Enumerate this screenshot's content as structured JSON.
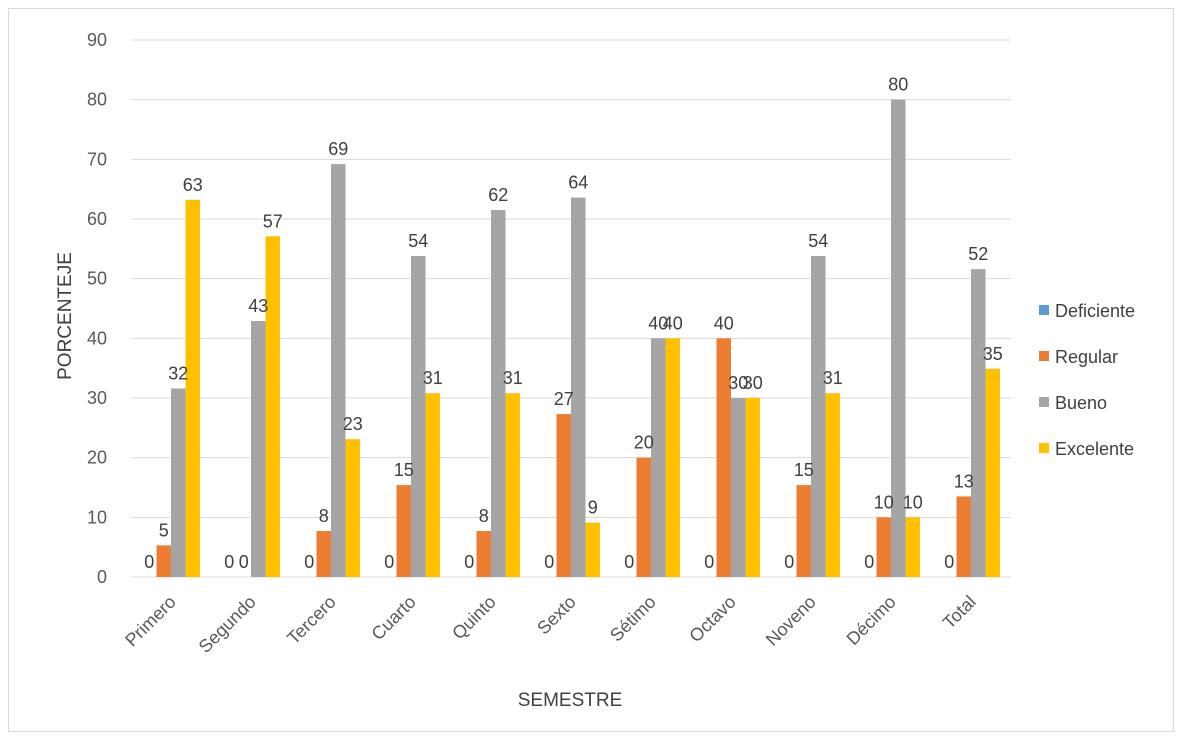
{
  "chart_data": {
    "type": "bar",
    "title": "",
    "xlabel": "SEMESTRE",
    "ylabel": "PORCENTEJE",
    "ylim": [
      0,
      90
    ],
    "yticks": [
      0,
      10,
      20,
      30,
      40,
      50,
      60,
      70,
      80,
      90
    ],
    "grid": true,
    "legend_position": "right",
    "categories": [
      "Primero",
      "Segundo",
      "Tercero",
      "Cuarto",
      "Quinto",
      "Sexto",
      "Sétimo",
      "Octavo",
      "Noveno",
      "Décimo",
      "Total"
    ],
    "series": [
      {
        "name": "Deficiente",
        "color": "#5b9bd5",
        "values": [
          0,
          0,
          0,
          0,
          0,
          0,
          0,
          0,
          0,
          0,
          0
        ],
        "labels": [
          "0",
          "0",
          "0",
          "0",
          "0",
          "0",
          "0",
          "0",
          "0",
          "0",
          "0"
        ]
      },
      {
        "name": "Regular",
        "color": "#ed7d31",
        "values": [
          5.3,
          0,
          7.7,
          15.4,
          7.7,
          27.3,
          20,
          40,
          15.4,
          10,
          13.5
        ],
        "labels": [
          "5",
          "0",
          "8",
          "15",
          "8",
          "27",
          "20",
          "40",
          "15",
          "10",
          "13"
        ]
      },
      {
        "name": "Bueno",
        "color": "#a5a5a5",
        "values": [
          31.6,
          42.9,
          69.2,
          53.8,
          61.5,
          63.6,
          40,
          30,
          53.8,
          80,
          51.6
        ],
        "labels": [
          "32",
          "43",
          "69",
          "54",
          "62",
          "64",
          "40",
          "30",
          "54",
          "80",
          "52"
        ]
      },
      {
        "name": "Excelente",
        "color": "#ffc000",
        "values": [
          63.2,
          57.1,
          23.1,
          30.8,
          30.8,
          9.1,
          40,
          30,
          30.8,
          10,
          34.9
        ],
        "labels": [
          "63",
          "57",
          "23",
          "31",
          "31",
          "9",
          "40",
          "30",
          "31",
          "10",
          "35"
        ]
      }
    ]
  }
}
